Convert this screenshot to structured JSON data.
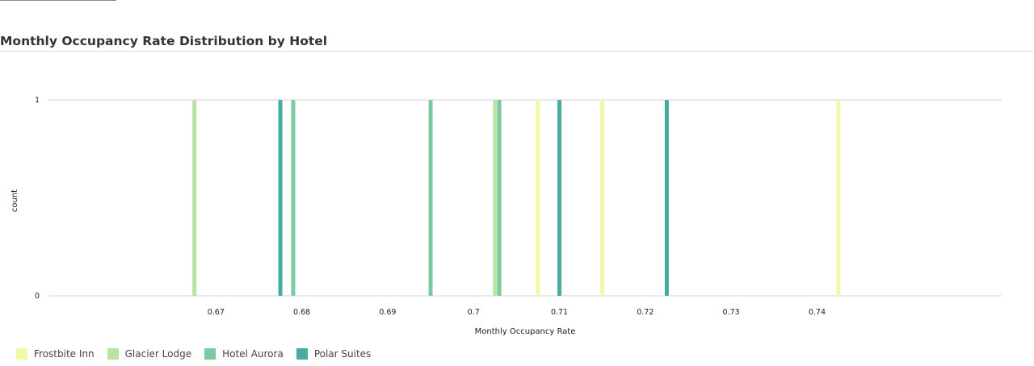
{
  "chart_data": {
    "type": "bar",
    "title": "Monthly Occupancy Rate Distribution by Hotel",
    "xlabel": "Monthly Occupancy Rate",
    "ylabel": "count",
    "xlim": [
      0.6505,
      0.7615
    ],
    "ylim": [
      0,
      1
    ],
    "x_ticks": [
      0.67,
      0.68,
      0.69,
      0.7,
      0.71,
      0.72,
      0.73,
      0.74
    ],
    "x_tick_labels": [
      "0.67",
      "0.68",
      "0.69",
      "0.7",
      "0.71",
      "0.72",
      "0.73",
      "0.74"
    ],
    "y_ticks": [
      0,
      1
    ],
    "y_tick_labels": [
      "0",
      "1"
    ],
    "grid": true,
    "legend_position": "bottom-left",
    "series": [
      {
        "name": "Frostbite Inn",
        "color": "#f4f7a6",
        "x": [
          0.7075,
          0.715,
          0.7425
        ],
        "values": [
          1,
          1,
          1
        ]
      },
      {
        "name": "Glacier Lodge",
        "color": "#b8e3a2",
        "x": [
          0.6675,
          0.7025
        ],
        "values": [
          1,
          1
        ]
      },
      {
        "name": "Hotel Aurora",
        "color": "#7ccaa1",
        "x": [
          0.679,
          0.695,
          0.703
        ],
        "values": [
          1,
          1,
          1
        ]
      },
      {
        "name": "Polar Suites",
        "color": "#45ad9f",
        "x": [
          0.6775,
          0.71,
          0.7225
        ],
        "values": [
          1,
          1,
          1
        ]
      }
    ]
  }
}
